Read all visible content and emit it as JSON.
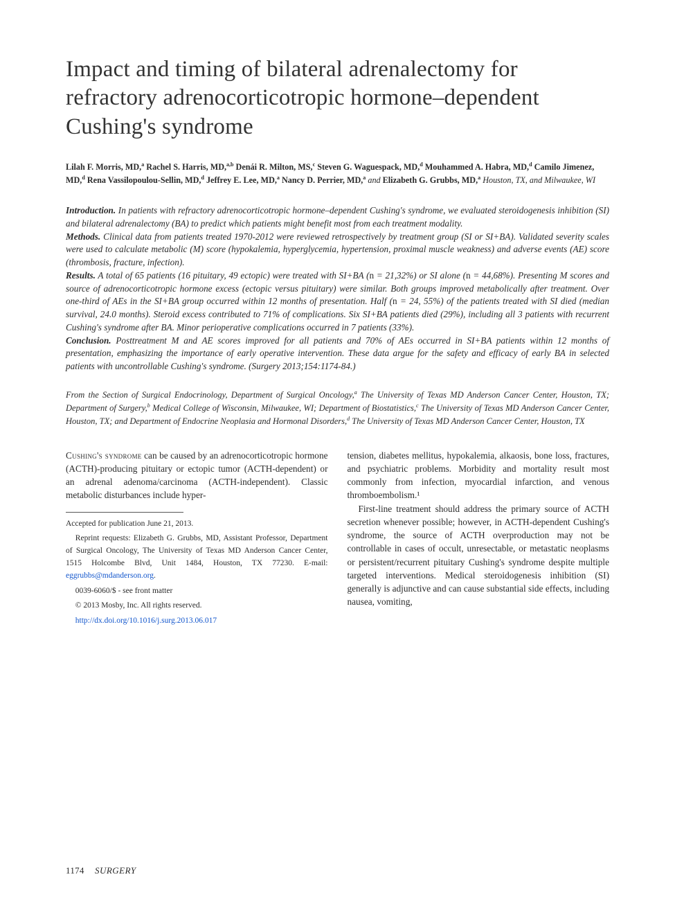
{
  "title": "Impact and timing of bilateral adrenalectomy for refractory adrenocorticotropic hormone–dependent Cushing's syndrome",
  "authors_html": "<b>Lilah F. Morris, MD,<sup>a</sup> Rachel S. Harris, MD,<sup>a,b</sup> Denái R. Milton, MS,<sup>c</sup> Steven G. Waguespack, MD,<sup>d</sup> Mouhammed A. Habra, MD,<sup>d</sup> Camilo Jimenez, MD,<sup>d</sup> Rena Vassilopoulou-Sellin, MD,<sup>d</sup> Jeffrey E. Lee, MD,<sup>a</sup> Nancy D. Perrier, MD,<sup>a</sup></b> <span class='and'>and</span> <b>Elizabeth G. Grubbs, MD,<sup>a</sup></b> <span class='loc'>Houston, TX, and Milwaukee, WI</span>",
  "abstract": {
    "intro_lead": "Introduction.",
    "intro": " In patients with refractory adrenocorticotropic hormone–dependent Cushing's syndrome, we evaluated steroidogenesis inhibition (SI) and bilateral adrenalectomy (BA) to predict which patients might benefit most from each treatment modality.",
    "methods_lead": "Methods.",
    "methods": " Clinical data from patients treated 1970-2012 were reviewed retrospectively by treatment group (SI or SI+BA). Validated severity scales were used to calculate metabolic (M) score (hypokalemia, hyperglycemia, hypertension, proximal muscle weakness) and adverse events (AE) score (thrombosis, fracture, infection).",
    "results_lead": "Results.",
    "results": " A total of 65 patients (16 pituitary, 49 ectopic) were treated with SI+BA (<span class='n'>n</span> = 21,32%) or SI alone (<span class='n'>n</span> = 44,68%). Presenting M scores and source of adrenocorticotropic hormone excess (ectopic versus pituitary) were similar. Both groups improved metabolically after treatment. Over one-third of AEs in the SI+BA group occurred within 12 months of presentation. Half (<span class='n'>n</span> = 24, 55%) of the patients treated with SI died (median survival, 24.0 months). Steroid excess contributed to 71% of complications. Six SI+BA patients died (29%), including all 3 patients with recurrent Cushing's syndrome after BA. Minor perioperative complications occurred in 7 patients (33%).",
    "concl_lead": "Conclusion.",
    "concl": " Posttreatment M and AE scores improved for all patients and 70% of AEs occurred in SI+BA patients within 12 months of presentation, emphasizing the importance of early operative intervention. These data argue for the safety and efficacy of early BA in selected patients with uncontrollable Cushing's syndrome. (Surgery 2013;154:1174-84.)"
  },
  "affil_html": "From the Section of Surgical Endocrinology, Department of Surgical Oncology,<sup>a</sup> The University of Texas MD Anderson Cancer Center, Houston, TX; Department of Surgery,<sup>b</sup> Medical College of Wisconsin, Milwaukee, WI; Department of Biostatistics,<sup>c</sup> The University of Texas MD Anderson Cancer Center, Houston, TX; and Department of Endocrine Neoplasia and Hormonal Disorders,<sup>d</sup> The University of Texas MD Anderson Cancer Center, Houston, TX",
  "body": {
    "left_p1": "<span class='sc'>Cushing's syndrome</span> can be caused by an adrenocorticotropic hormone (ACTH)-producing pituitary or ectopic tumor (ACTH-dependent) or an adrenal adenoma/carcinoma (ACTH-independent). Classic metabolic disturbances include hyper-",
    "right_p1": "tension, diabetes mellitus, hypokalemia, alkaosis, bone loss, fractures, and psychiatric problems. Morbidity and mortality result most commonly from infection, myocardial infarction, and venous thromboembolism.¹",
    "right_p2": "First-line treatment should address the primary source of ACTH secretion whenever possible; however, in ACTH-dependent Cushing's syndrome, the source of ACTH overproduction may not be controllable in cases of occult, unresectable, or metastatic neoplasms or persistent/recurrent pituitary Cushing's syndrome despite multiple targeted interventions. Medical steroidogenesis inhibition (SI) generally is adjunctive and can cause substantial side effects, including nausea, vomiting,"
  },
  "meta": {
    "accepted": "Accepted for publication June 21, 2013.",
    "reprint": "Reprint requests: Elizabeth G. Grubbs, MD, Assistant Professor, Department of Surgical Oncology, The University of Texas MD Anderson Cancer Center, 1515 Holcombe Blvd, Unit 1484, Houston, TX 77230. E-mail: ",
    "email": "eggrubbs@mdanderson.org",
    "issn": "0039-6060/$ - see front matter",
    "copyright": "© 2013 Mosby, Inc. All rights reserved.",
    "doi": "http://dx.doi.org/10.1016/j.surg.2013.06.017"
  },
  "footer": {
    "page": "1174",
    "journal": "SURGERY"
  }
}
